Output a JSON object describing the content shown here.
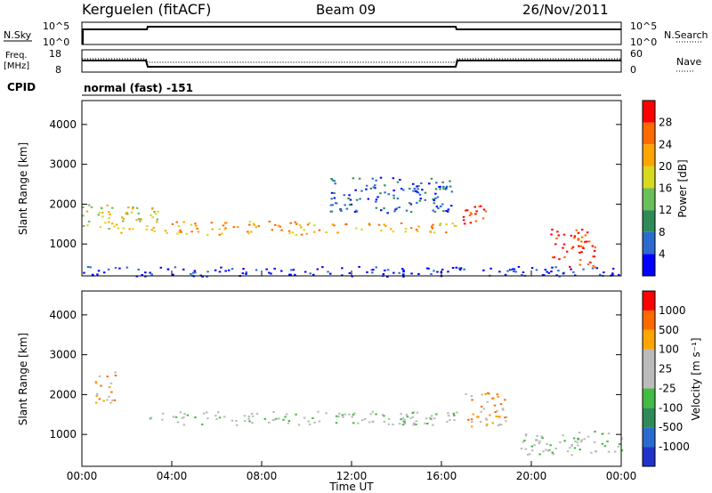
{
  "header": {
    "station": "Kerguelen (fitACF)",
    "beam": "Beam 09",
    "date": "26/Nov/2011"
  },
  "nsky_panel": {
    "left_label": "N.Sky",
    "left_ticks": [
      "10^5",
      "10^0"
    ],
    "right_ticks": [
      "10^5",
      "10^0"
    ],
    "right_label": "N.Search",
    "right_legend_line": "dotted"
  },
  "freq_panel": {
    "left_label_line1": "Freq.",
    "left_label_line2": "[MHz]",
    "left_ticks": [
      "18",
      "8"
    ],
    "right_ticks": [
      "60",
      "0"
    ],
    "right_label": "Nave",
    "right_legend_line": "dotted"
  },
  "cpid": {
    "label": "CPID",
    "value": "normal (fast)  -151"
  },
  "chart_data": [
    {
      "type": "heatmap",
      "name": "power",
      "ylabel": "Slant Range [km]",
      "yticks": [
        1000,
        2000,
        3000,
        4000
      ],
      "ylim": [
        200,
        4600
      ],
      "xlim": [
        0,
        24
      ],
      "colorbar": {
        "label": "Power [dB]",
        "ticks": [
          "4",
          "8",
          "12",
          "16",
          "20",
          "24",
          "28"
        ],
        "colors": [
          "#0000ff",
          "#2b6bd0",
          "#2e8b57",
          "#6bbf59",
          "#d8d820",
          "#ffa500",
          "#ff6a00",
          "#ff0000"
        ]
      },
      "bands": [
        {
          "x0": 0.0,
          "x1": 3.5,
          "y0": 1300,
          "y1": 2000,
          "level": 4
        },
        {
          "x0": 3.5,
          "x1": 10.0,
          "y0": 1250,
          "y1": 1600,
          "level": 5
        },
        {
          "x0": 10.0,
          "x1": 16.8,
          "y0": 1300,
          "y1": 1550,
          "level": 5
        },
        {
          "x0": 16.8,
          "x1": 18.0,
          "y0": 1500,
          "y1": 2100,
          "level": 7
        },
        {
          "x0": 20.8,
          "x1": 22.8,
          "y0": 400,
          "y1": 1400,
          "level": 7
        },
        {
          "x0": 11.0,
          "x1": 16.5,
          "y0": 1800,
          "y1": 2700,
          "level": 1
        },
        {
          "x0": 0.0,
          "x1": 24.0,
          "y0": 200,
          "y1": 450,
          "level": 0
        }
      ]
    },
    {
      "type": "heatmap",
      "name": "velocity",
      "ylabel": "Slant Range [km]",
      "yticks": [
        1000,
        2000,
        3000,
        4000
      ],
      "ylim": [
        200,
        4600
      ],
      "xlim": [
        0,
        24
      ],
      "xticks": [
        "00:00",
        "04:00",
        "08:00",
        "12:00",
        "16:00",
        "20:00",
        "00:00"
      ],
      "xlabel": "Time UT",
      "colorbar": {
        "label": "Velocity [m s⁻¹]",
        "ticks": [
          "1000",
          "500",
          "100",
          "25",
          "-25",
          "-100",
          "-500",
          "-1000"
        ],
        "colors": [
          "#2233cc",
          "#2b6bd0",
          "#2e8b57",
          "#44bb44",
          "#bbbbbb",
          "#bbbbbb",
          "#ffa500",
          "#ff6a00",
          "#ff0000"
        ]
      },
      "bands": [
        {
          "x0": 3.0,
          "x1": 16.8,
          "y0": 1250,
          "y1": 1600,
          "level": 4
        },
        {
          "x0": 17.0,
          "x1": 19.0,
          "y0": 1200,
          "y1": 2100,
          "level": 6
        },
        {
          "x0": 0.5,
          "x1": 1.5,
          "y0": 1800,
          "y1": 2600,
          "level": 6
        },
        {
          "x0": 19.5,
          "x1": 24.0,
          "y0": 500,
          "y1": 1100,
          "level": 4
        }
      ]
    }
  ]
}
